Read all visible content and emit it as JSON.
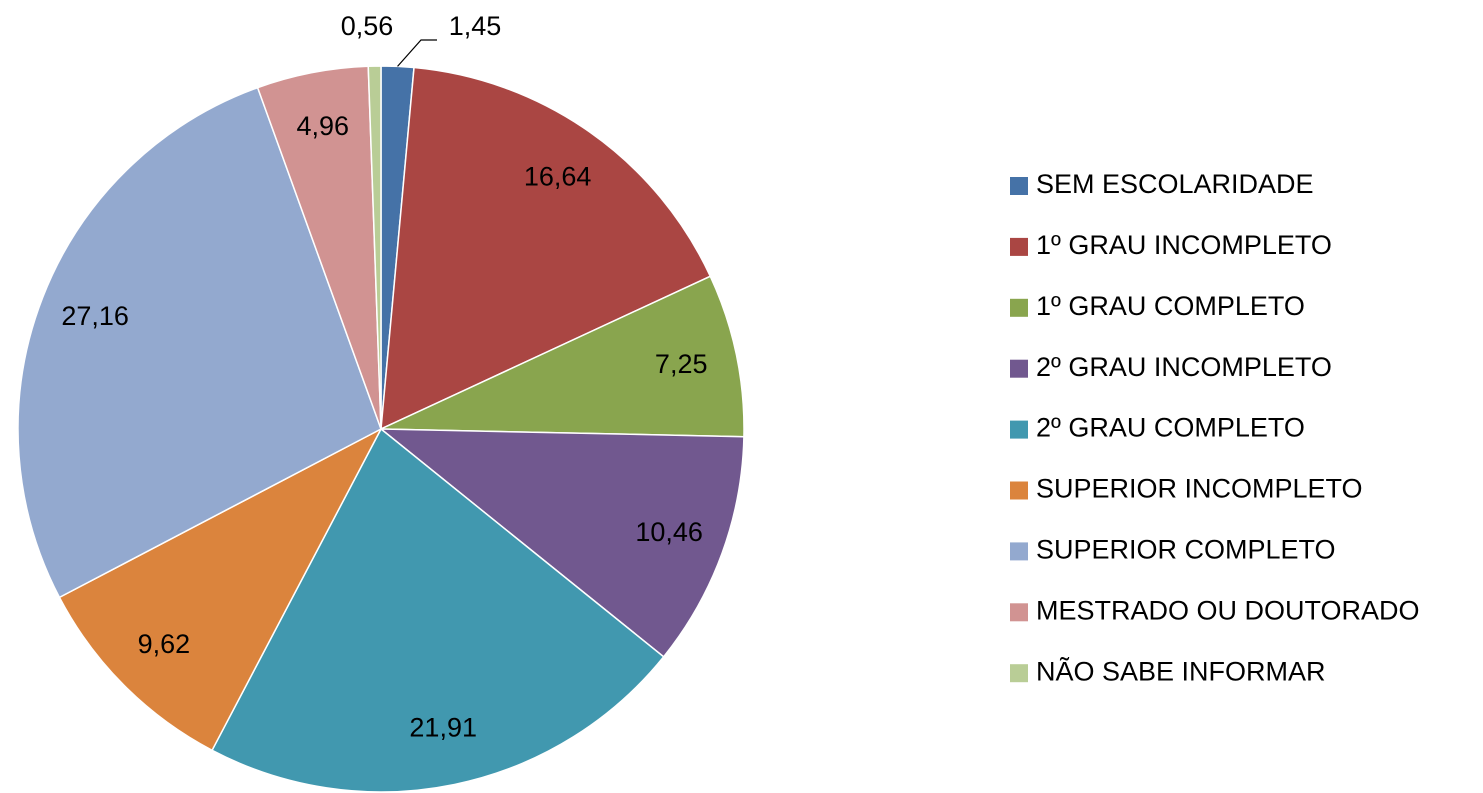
{
  "chart_data": {
    "type": "pie",
    "categories": [
      "SEM ESCOLARIDADE",
      "1º GRAU INCOMPLETO",
      "1º GRAU COMPLETO",
      "2º GRAU INCOMPLETO",
      "2º GRAU COMPLETO",
      "SUPERIOR INCOMPLETO",
      "SUPERIOR COMPLETO",
      "MESTRADO OU DOUTORADO",
      "NÃO SABE INFORMAR"
    ],
    "values": [
      1.45,
      16.64,
      7.25,
      10.46,
      21.91,
      9.62,
      27.16,
      4.96,
      0.56
    ],
    "value_labels": [
      "1,45",
      "16,64",
      "7,25",
      "10,46",
      "21,91",
      "9,62",
      "27,16",
      "4,96",
      "0,56"
    ],
    "colors": [
      "#4572a7",
      "#aa4643",
      "#89a54e",
      "#71588f",
      "#4198af",
      "#db843d",
      "#93a9cf",
      "#d19392",
      "#b9cd96"
    ],
    "legend": "right"
  }
}
